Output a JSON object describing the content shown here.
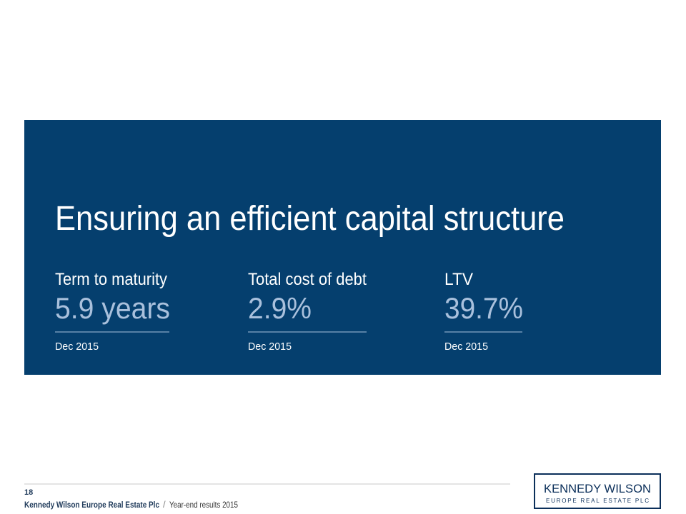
{
  "header": {
    "title": "Ensuring an efficient capital structure"
  },
  "metrics": [
    {
      "label": "Term to maturity",
      "value": "5.9 years",
      "date": "Dec 2015"
    },
    {
      "label": "Total cost of debt",
      "value": "2.9%",
      "date": "Dec 2015"
    },
    {
      "label": "LTV",
      "value": "39.7%",
      "date": "Dec 2015"
    }
  ],
  "footer": {
    "page": "18",
    "company": "Kennedy Wilson Europe Real Estate Plc",
    "separator": "/",
    "report": "Year-end results 2015"
  },
  "logo": {
    "name": "KENNEDY WILSON",
    "subtitle": "EUROPE REAL ESTATE PLC"
  }
}
